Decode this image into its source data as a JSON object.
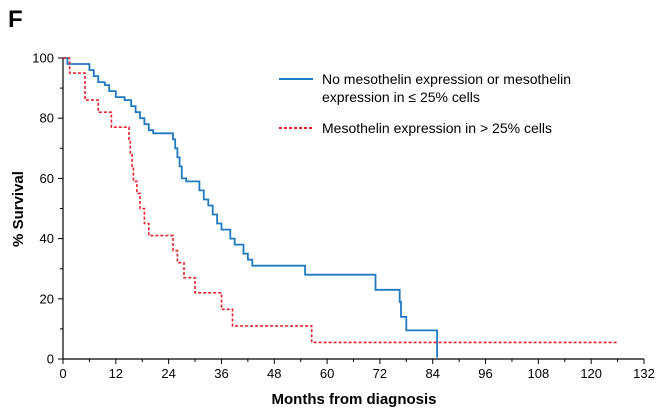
{
  "panel_label": "F",
  "chart_data": {
    "type": "line",
    "title": "",
    "xlabel": "Months from diagnosis",
    "ylabel": "% Survival",
    "xlim": [
      0,
      132
    ],
    "ylim": [
      0,
      100
    ],
    "x_ticks": [
      "0",
      "12",
      "24",
      "36",
      "48",
      "60",
      "72",
      "84",
      "96",
      "108",
      "120",
      "132"
    ],
    "y_ticks": [
      "0",
      "20",
      "40",
      "60",
      "80",
      "100"
    ],
    "x_tick_values": [
      0,
      12,
      24,
      36,
      48,
      60,
      72,
      84,
      96,
      108,
      120,
      132
    ],
    "y_tick_values": [
      0,
      20,
      40,
      60,
      80,
      100
    ],
    "grid": false,
    "legend_position": "top-right",
    "series": [
      {
        "name": "No mesothelin expression or mesothelin expression in ≤ 25% cells",
        "name_lines": [
          "No mesothelin expression or mesothelin",
          "expression in ≤ 25% cells"
        ],
        "color": "#1f7bc1",
        "style": "solid",
        "steps": [
          [
            0,
            100
          ],
          [
            1,
            98
          ],
          [
            6,
            96
          ],
          [
            7,
            94
          ],
          [
            8,
            92
          ],
          [
            9.5,
            91
          ],
          [
            10.5,
            89
          ],
          [
            12,
            87
          ],
          [
            14,
            86
          ],
          [
            15.5,
            84
          ],
          [
            16.5,
            82
          ],
          [
            17.5,
            80
          ],
          [
            18.5,
            78
          ],
          [
            19.5,
            76
          ],
          [
            20.5,
            75
          ],
          [
            25,
            73
          ],
          [
            25.5,
            70
          ],
          [
            26,
            67
          ],
          [
            26.5,
            64
          ],
          [
            27,
            60
          ],
          [
            28,
            59
          ],
          [
            31,
            56
          ],
          [
            32,
            53
          ],
          [
            33,
            51
          ],
          [
            34,
            48
          ],
          [
            35,
            45
          ],
          [
            36,
            43
          ],
          [
            38,
            40
          ],
          [
            39,
            38
          ],
          [
            41,
            35
          ],
          [
            42,
            33
          ],
          [
            43,
            31
          ],
          [
            55,
            28
          ],
          [
            71,
            23
          ],
          [
            76.5,
            19
          ],
          [
            76.8,
            14
          ],
          [
            78,
            9.5
          ],
          [
            85,
            0.5
          ]
        ],
        "end_x": 85
      },
      {
        "name": "Mesothelin expression in > 25% cells",
        "name_lines": [
          "Mesothelin expression in > 25% cells"
        ],
        "color": "#e8202a",
        "style": "dashed",
        "steps": [
          [
            0,
            100
          ],
          [
            1.5,
            95
          ],
          [
            5,
            86
          ],
          [
            8,
            82
          ],
          [
            11,
            77
          ],
          [
            15,
            73
          ],
          [
            15.3,
            68
          ],
          [
            15.7,
            64
          ],
          [
            16,
            59
          ],
          [
            16.8,
            55
          ],
          [
            17.5,
            50
          ],
          [
            18.5,
            45
          ],
          [
            19.5,
            41
          ],
          [
            25,
            36
          ],
          [
            26,
            32
          ],
          [
            27.5,
            27
          ],
          [
            30,
            22
          ],
          [
            36,
            16.5
          ],
          [
            38.5,
            11
          ],
          [
            56.5,
            5.5
          ]
        ],
        "end_x": 126
      }
    ]
  }
}
